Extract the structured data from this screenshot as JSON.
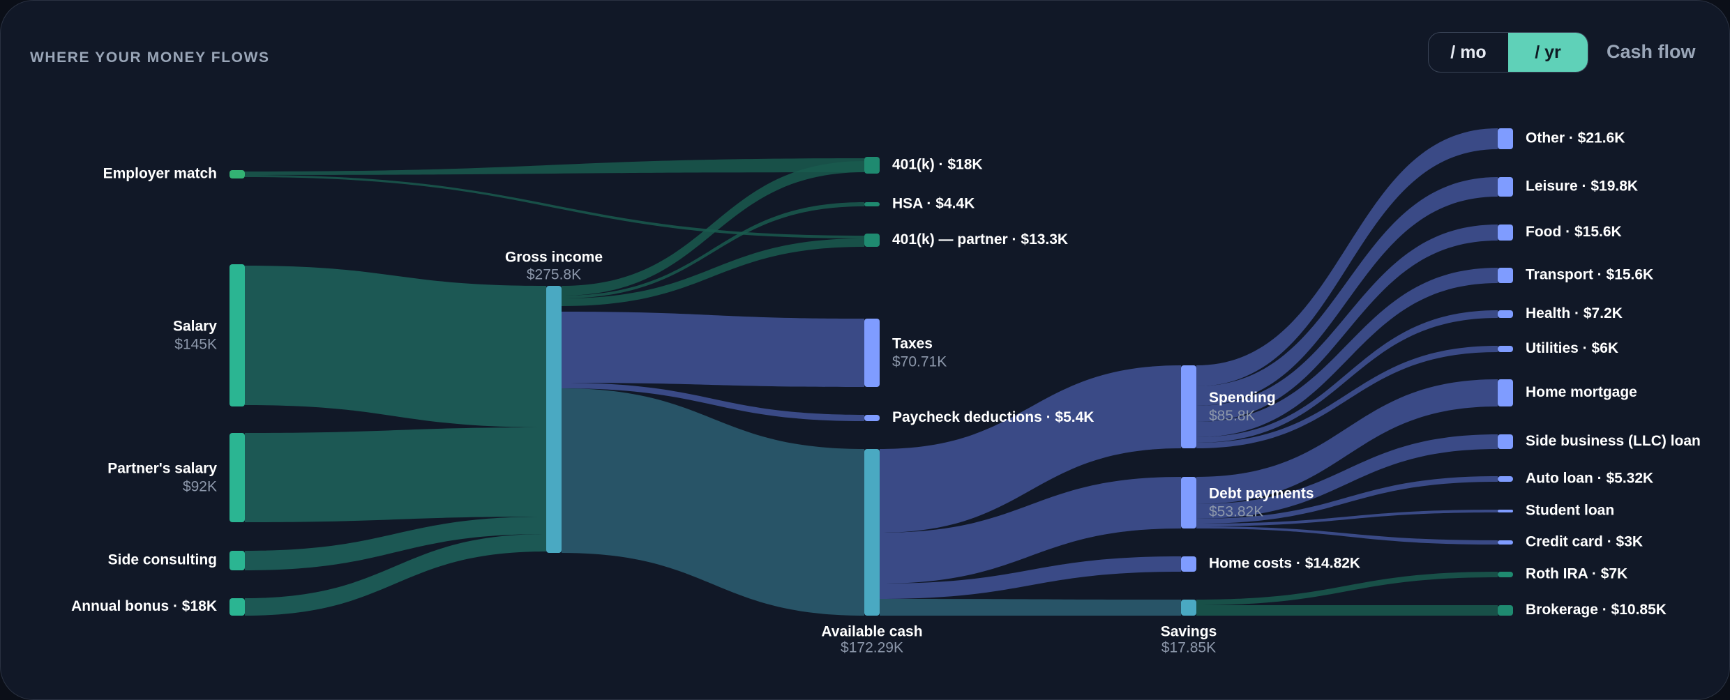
{
  "header": {
    "title": "WHERE YOUR MONEY FLOWS",
    "period_options": [
      {
        "label": "/ mo",
        "active": false
      },
      {
        "label": "/ yr",
        "active": true
      }
    ],
    "view_label": "Cash flow"
  },
  "colors": {
    "income": "#2bb592",
    "income_link": "#1d5e58",
    "gross": "#4aa9c2",
    "gross_link": "#2a5a6c",
    "expense": "#7f9cff",
    "expense_link": "#3e4f8e",
    "invest": "#1f8a70",
    "invest_link": "#1a5a4f",
    "match": "#33b273",
    "label": "#ffffff",
    "sublabel": "#8c97aa"
  },
  "nodes": [
    {
      "id": "employer_match",
      "label": "Employer match",
      "value": null,
      "kind": "match"
    },
    {
      "id": "salary",
      "label": "Salary",
      "value": "$145K",
      "kind": "income"
    },
    {
      "id": "partner_salary",
      "label": "Partner's salary",
      "value": "$92K",
      "kind": "income"
    },
    {
      "id": "side_consulting",
      "label": "Side consulting",
      "value": null,
      "kind": "income"
    },
    {
      "id": "annual_bonus",
      "label": "Annual bonus · $18K",
      "value": null,
      "kind": "income"
    },
    {
      "id": "gross_income",
      "label": "Gross income",
      "value": "$275.8K",
      "kind": "gross"
    },
    {
      "id": "k401",
      "label": "401(k) · $18K",
      "value": null,
      "kind": "invest"
    },
    {
      "id": "hsa",
      "label": "HSA · $4.4K",
      "value": null,
      "kind": "invest"
    },
    {
      "id": "k401_partner",
      "label": "401(k) — partner · $13.3K",
      "value": null,
      "kind": "invest"
    },
    {
      "id": "taxes",
      "label": "Taxes",
      "value": "$70.71K",
      "kind": "expense"
    },
    {
      "id": "paycheck_deductions",
      "label": "Paycheck deductions · $5.4K",
      "value": null,
      "kind": "expense"
    },
    {
      "id": "available_cash",
      "label": "Available cash",
      "value": "$172.29K",
      "kind": "gross"
    },
    {
      "id": "spending",
      "label": "Spending",
      "value": "$85.8K",
      "kind": "expense"
    },
    {
      "id": "debt_payments",
      "label": "Debt payments",
      "value": "$53.82K",
      "kind": "expense"
    },
    {
      "id": "home_costs",
      "label": "Home costs · $14.82K",
      "value": null,
      "kind": "expense"
    },
    {
      "id": "savings",
      "label": "Savings",
      "value": "$17.85K",
      "kind": "gross"
    },
    {
      "id": "other",
      "label": "Other · $21.6K",
      "value": null,
      "kind": "expense"
    },
    {
      "id": "leisure",
      "label": "Leisure · $19.8K",
      "value": null,
      "kind": "expense"
    },
    {
      "id": "food",
      "label": "Food · $15.6K",
      "value": null,
      "kind": "expense"
    },
    {
      "id": "transport",
      "label": "Transport · $15.6K",
      "value": null,
      "kind": "expense"
    },
    {
      "id": "health",
      "label": "Health · $7.2K",
      "value": null,
      "kind": "expense"
    },
    {
      "id": "utilities",
      "label": "Utilities · $6K",
      "value": null,
      "kind": "expense"
    },
    {
      "id": "home_mortgage",
      "label": "Home mortgage",
      "value": null,
      "kind": "expense"
    },
    {
      "id": "side_business_loan",
      "label": "Side business (LLC) loan",
      "value": null,
      "kind": "expense"
    },
    {
      "id": "auto_loan",
      "label": "Auto loan · $5.32K",
      "value": null,
      "kind": "expense"
    },
    {
      "id": "student_loan",
      "label": "Student loan",
      "value": null,
      "kind": "expense"
    },
    {
      "id": "credit_card",
      "label": "Credit card · $3K",
      "value": null,
      "kind": "expense"
    },
    {
      "id": "roth_ira",
      "label": "Roth IRA · $7K",
      "value": null,
      "kind": "invest"
    },
    {
      "id": "brokerage",
      "label": "Brokerage · $10.85K",
      "value": null,
      "kind": "invest"
    }
  ],
  "links": [
    {
      "source": "employer_match",
      "target": "k401",
      "kind": "invest"
    },
    {
      "source": "employer_match",
      "target": "k401_partner",
      "kind": "invest"
    },
    {
      "source": "salary",
      "target": "gross_income",
      "kind": "income"
    },
    {
      "source": "partner_salary",
      "target": "gross_income",
      "kind": "income"
    },
    {
      "source": "side_consulting",
      "target": "gross_income",
      "kind": "income"
    },
    {
      "source": "annual_bonus",
      "target": "gross_income",
      "kind": "income"
    },
    {
      "source": "gross_income",
      "target": "k401",
      "kind": "invest"
    },
    {
      "source": "gross_income",
      "target": "hsa",
      "kind": "invest"
    },
    {
      "source": "gross_income",
      "target": "k401_partner",
      "kind": "invest"
    },
    {
      "source": "gross_income",
      "target": "taxes",
      "kind": "expense"
    },
    {
      "source": "gross_income",
      "target": "paycheck_deductions",
      "kind": "expense"
    },
    {
      "source": "gross_income",
      "target": "available_cash",
      "kind": "gross"
    },
    {
      "source": "available_cash",
      "target": "spending",
      "kind": "expense"
    },
    {
      "source": "available_cash",
      "target": "debt_payments",
      "kind": "expense"
    },
    {
      "source": "available_cash",
      "target": "home_costs",
      "kind": "expense"
    },
    {
      "source": "available_cash",
      "target": "savings",
      "kind": "gross"
    },
    {
      "source": "spending",
      "target": "other",
      "kind": "expense"
    },
    {
      "source": "spending",
      "target": "leisure",
      "kind": "expense"
    },
    {
      "source": "spending",
      "target": "food",
      "kind": "expense"
    },
    {
      "source": "spending",
      "target": "transport",
      "kind": "expense"
    },
    {
      "source": "spending",
      "target": "health",
      "kind": "expense"
    },
    {
      "source": "spending",
      "target": "utilities",
      "kind": "expense"
    },
    {
      "source": "debt_payments",
      "target": "home_mortgage",
      "kind": "expense"
    },
    {
      "source": "debt_payments",
      "target": "side_business_loan",
      "kind": "expense"
    },
    {
      "source": "debt_payments",
      "target": "auto_loan",
      "kind": "expense"
    },
    {
      "source": "debt_payments",
      "target": "student_loan",
      "kind": "expense"
    },
    {
      "source": "debt_payments",
      "target": "credit_card",
      "kind": "expense"
    },
    {
      "source": "savings",
      "target": "roth_ira",
      "kind": "invest"
    },
    {
      "source": "savings",
      "target": "brokerage",
      "kind": "invest"
    }
  ]
}
